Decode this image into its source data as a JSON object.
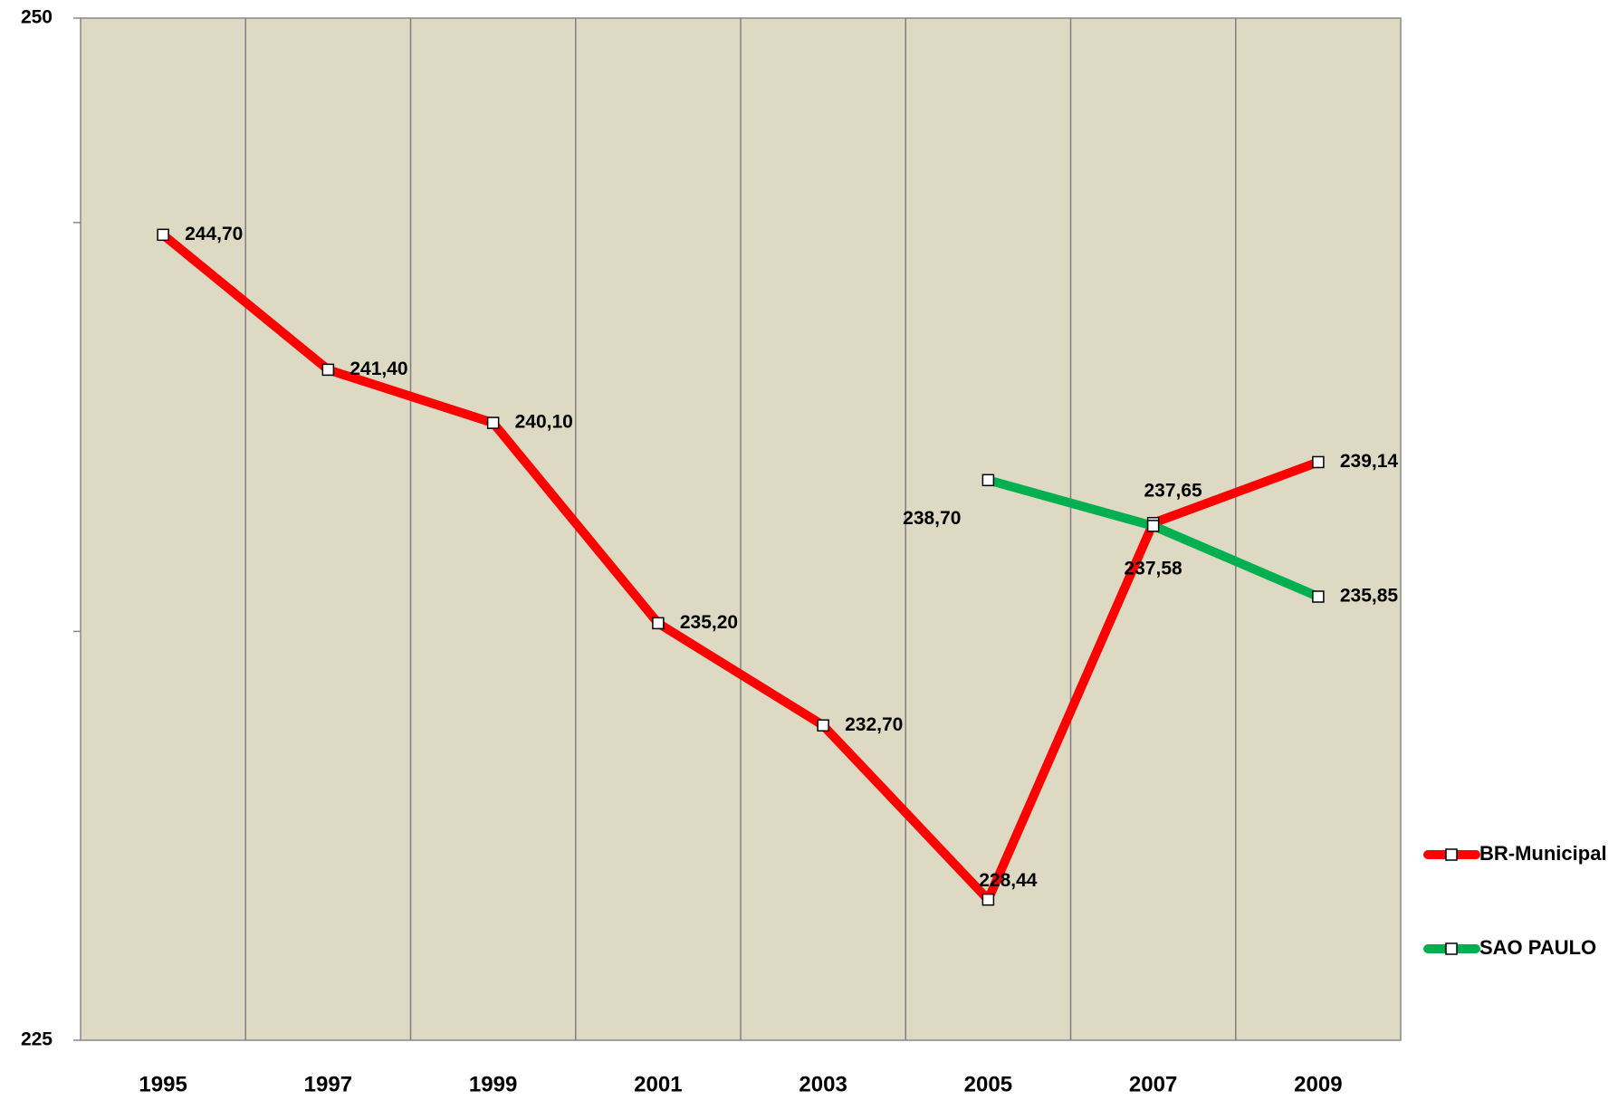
{
  "chart_data": {
    "type": "line",
    "categories": [
      "1995",
      "1997",
      "1999",
      "2001",
      "2003",
      "2005",
      "2007",
      "2009"
    ],
    "series": [
      {
        "name": "BR-Municipal",
        "color": "#ff0000",
        "values": [
          244.7,
          241.4,
          240.1,
          235.2,
          232.7,
          228.44,
          237.65,
          239.14
        ],
        "value_labels": [
          "244,70",
          "241,40",
          "240,10",
          "235,20",
          "232,70",
          "228,44",
          "237,65",
          "239,14"
        ]
      },
      {
        "name": "SAO PAULO",
        "color": "#00b050",
        "values": [
          null,
          null,
          null,
          null,
          null,
          238.7,
          237.58,
          235.85
        ],
        "value_labels": [
          null,
          null,
          null,
          null,
          null,
          "238,70",
          "237,58",
          "235,85"
        ]
      }
    ],
    "ylim": [
      225,
      250
    ],
    "yticks": [
      225,
      250
    ],
    "minor_yticks": [
      235,
      245
    ],
    "plot_background": "#ddd9c3",
    "grid": true,
    "legend": "right"
  }
}
